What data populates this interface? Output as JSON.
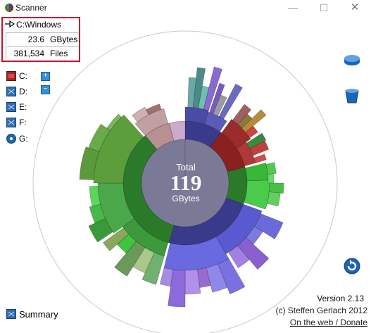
{
  "window": {
    "title": "Scanner"
  },
  "info": {
    "path": "C:\\Windows",
    "size_value": "23.6",
    "size_unit": "GBytes",
    "files_value": "381,534",
    "files_unit": "Files"
  },
  "drives": [
    {
      "label": "C:",
      "icon": "hard-drive-red-icon"
    },
    {
      "label": "D:",
      "icon": "hard-drive-blue-icon"
    },
    {
      "label": "E:",
      "icon": "hard-drive-blue-icon"
    },
    {
      "label": "F:",
      "icon": "hard-drive-blue-icon"
    },
    {
      "label": "G:",
      "icon": "cd-drive-icon"
    }
  ],
  "expand": {
    "plus": "+",
    "minus": "−"
  },
  "center": {
    "label": "Total",
    "value": "119",
    "unit": "GBytes"
  },
  "footer": {
    "version": "Version 2.13",
    "copyright": "(c) Steffen Gerlach 2012",
    "link": "On the web / Donate",
    "summary": "Summary"
  },
  "colors": {
    "highlight_border": "#c8102e",
    "windows_blue": "#3a3a8c",
    "green": "#2a7a2a",
    "red": "#8b2020"
  }
}
